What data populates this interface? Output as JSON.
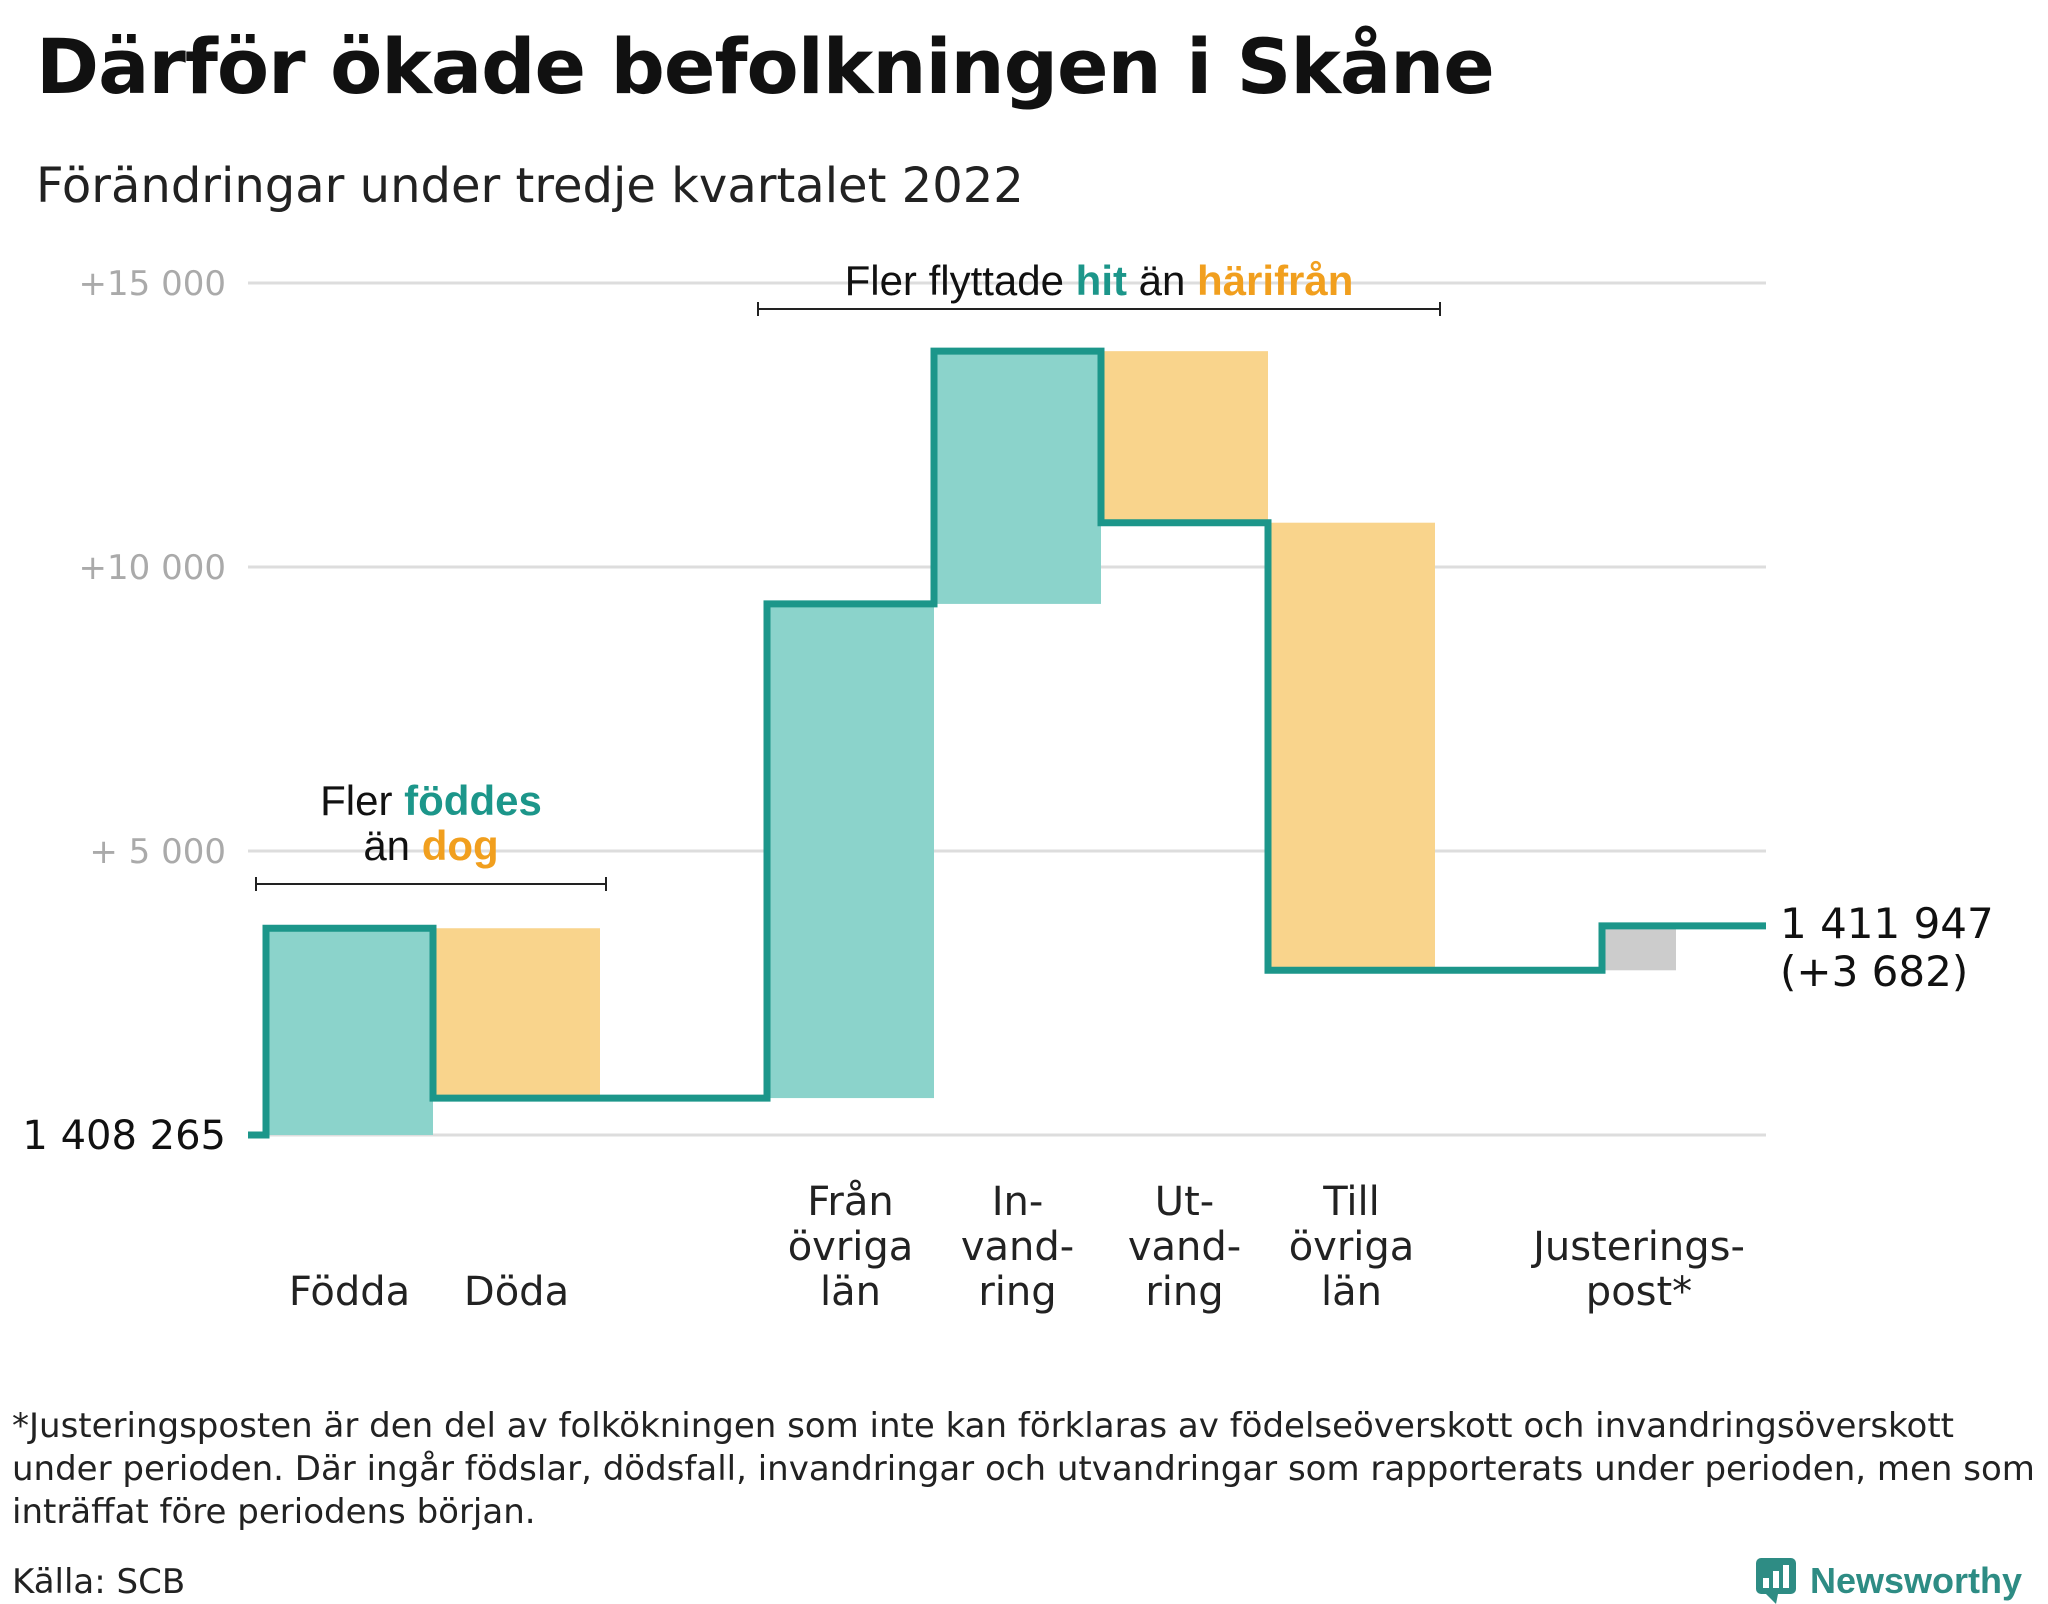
{
  "title": "Därför ökade befolkningen i Skåne",
  "subtitle": "Förändringar under tredje kvartalet 2022",
  "colors": {
    "teal_line": "#1c968a",
    "teal_fill": "#8bd3cb",
    "orange_fill": "#f9d48c",
    "orange_text": "#f19f1e",
    "teal_text": "#1c968a",
    "gray_fill": "#cccccc",
    "grid": "#dddddd"
  },
  "chart_data": {
    "type": "waterfall",
    "title": "Därför ökade befolkningen i Skåne",
    "subtitle": "Förändringar under tredje kvartalet 2022",
    "baseline_label": "1 408 265",
    "end_label": "1 411 947",
    "end_change_label": "(+3 682)",
    "ylim": [
      0,
      15000
    ],
    "yticks": [
      {
        "value": 5000,
        "label": "+ 5 000"
      },
      {
        "value": 10000,
        "label": "+10 000"
      },
      {
        "value": 15000,
        "label": "+15 000"
      }
    ],
    "grid": true,
    "steps": [
      {
        "label": "Födda",
        "change": 3640,
        "kind": "increase"
      },
      {
        "label": "Döda",
        "change": -2990,
        "kind": "decrease"
      },
      {
        "label": "Från övriga län",
        "change": 8700,
        "kind": "increase"
      },
      {
        "label": "In- vand- ring",
        "change": 4450,
        "kind": "increase"
      },
      {
        "label": "Ut- vand- ring",
        "change": -3020,
        "kind": "decrease"
      },
      {
        "label": "Till övriga län",
        "change": -7880,
        "kind": "decrease"
      },
      {
        "label": "Justerings- post*",
        "change": 782,
        "kind": "adjustment"
      }
    ],
    "annotations": {
      "births": {
        "prefix": "Fler ",
        "highlight1": "föddes",
        "middle": "än ",
        "highlight2": "dog"
      },
      "migration": {
        "prefix": "Fler flyttade ",
        "highlight1": "hit",
        "middle": " än ",
        "highlight2": "härifrån"
      }
    }
  },
  "footnote": "*Justeringsposten är den del av folkökningen som inte kan förklaras av födelseöverskott och invandringsöverskott under perioden. Där ingår födslar, dödsfall, invandringar och utvandringar som rapporterats under perioden, men som inträffat före periodens början.",
  "source": "Källa: SCB",
  "brand": "Newsworthy",
  "brand_icon": "newsworthy-logo-icon"
}
